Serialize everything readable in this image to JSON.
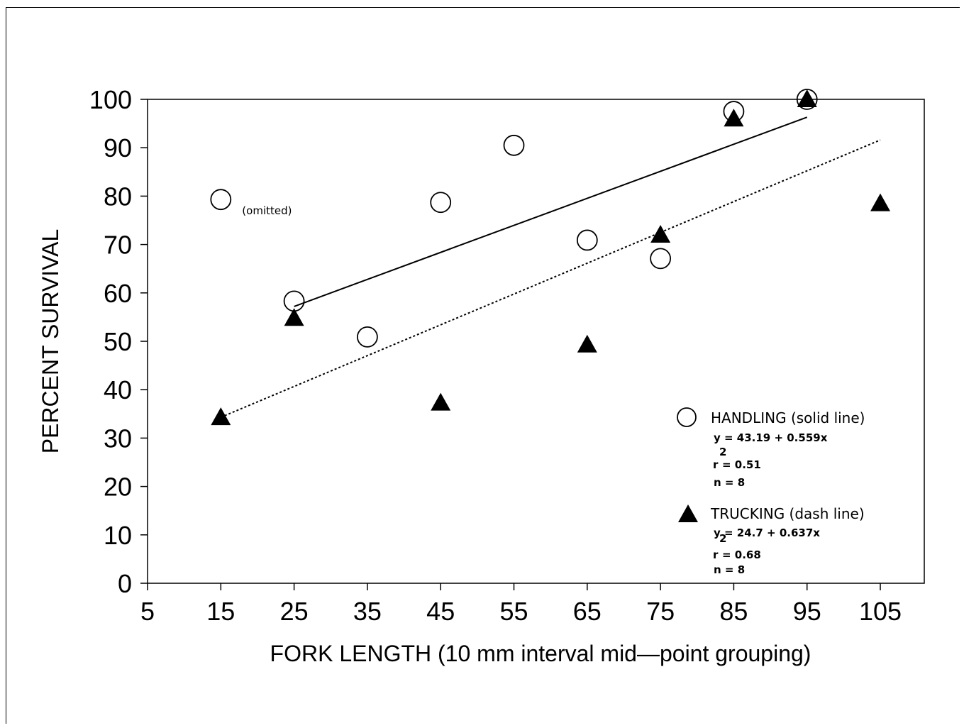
{
  "chart_data": {
    "type": "scatter",
    "xlabel": "FORK LENGTH (10 mm interval mid—point grouping)",
    "ylabel": "PERCENT SURVIVAL",
    "xlim": [
      5,
      111
    ],
    "ylim": [
      0,
      100
    ],
    "xticks": [
      5,
      15,
      25,
      35,
      45,
      55,
      65,
      75,
      85,
      95,
      105
    ],
    "yticks": [
      0,
      10,
      20,
      30,
      40,
      50,
      60,
      70,
      80,
      90,
      100
    ],
    "series": [
      {
        "name": "HANDLING (solid line)",
        "marker": "open-circle",
        "line": "solid",
        "points": [
          [
            25,
            58.3
          ],
          [
            35,
            50.9
          ],
          [
            45,
            78.7
          ],
          [
            55,
            90.5
          ],
          [
            65,
            70.9
          ],
          [
            75,
            67.1
          ],
          [
            85,
            97.5
          ],
          [
            95,
            100
          ]
        ],
        "fit": [
          [
            25,
            57.2
          ],
          [
            95,
            96.3
          ]
        ],
        "equation": "y = 43.19 + 0.559x",
        "r2_label": "r",
        "r2_sup": "2",
        "r2_value": "= 0.51",
        "n": "n = 8"
      },
      {
        "name": "TRUCKING (dash line)",
        "marker": "filled-triangle",
        "line": "dotted",
        "points": [
          [
            15,
            34.3
          ],
          [
            25,
            54.8
          ],
          [
            45,
            37.3
          ],
          [
            65,
            49.3
          ],
          [
            75,
            72
          ],
          [
            85,
            96
          ],
          [
            95,
            100
          ],
          [
            105,
            78.5
          ]
        ],
        "fit": [
          [
            15,
            34.3
          ],
          [
            105,
            91.6
          ]
        ],
        "equation": "y = 24.7 + 0.637x",
        "r2_label": "r",
        "r2_sup": "2",
        "r2_value": "= 0.68",
        "n": "n = 8"
      }
    ],
    "omitted_point": {
      "x": 15,
      "y": 79.3,
      "label": "(omitted)"
    },
    "legend_position": "bottom-right",
    "grid": false
  }
}
